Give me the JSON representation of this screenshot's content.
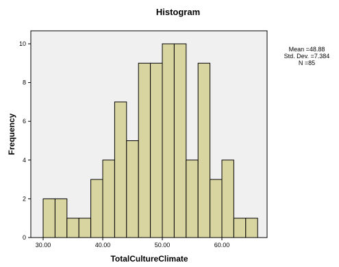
{
  "chart_data": {
    "type": "bar",
    "subtype": "histogram",
    "title": "Histogram",
    "xlabel": "TotalCultureClimate",
    "ylabel": "Frequency",
    "xlim": [
      28,
      67
    ],
    "ylim": [
      0,
      11
    ],
    "x_ticks": [
      30,
      40,
      50,
      60
    ],
    "x_tick_labels": [
      "30.00",
      "40.00",
      "50.00",
      "60.00"
    ],
    "y_ticks": [
      0,
      2,
      4,
      6,
      8,
      10
    ],
    "y_tick_labels": [
      "0",
      "2",
      "4",
      "6",
      "8",
      "10"
    ],
    "bin_width": 2,
    "bins": [
      {
        "start": 30,
        "end": 32,
        "count": 2
      },
      {
        "start": 32,
        "end": 34,
        "count": 2
      },
      {
        "start": 34,
        "end": 36,
        "count": 1
      },
      {
        "start": 36,
        "end": 38,
        "count": 1
      },
      {
        "start": 38,
        "end": 40,
        "count": 3
      },
      {
        "start": 40,
        "end": 42,
        "count": 4
      },
      {
        "start": 42,
        "end": 44,
        "count": 7
      },
      {
        "start": 44,
        "end": 46,
        "count": 5
      },
      {
        "start": 46,
        "end": 48,
        "count": 9
      },
      {
        "start": 48,
        "end": 50,
        "count": 9
      },
      {
        "start": 50,
        "end": 52,
        "count": 10
      },
      {
        "start": 52,
        "end": 54,
        "count": 10
      },
      {
        "start": 54,
        "end": 56,
        "count": 4
      },
      {
        "start": 56,
        "end": 58,
        "count": 9
      },
      {
        "start": 58,
        "end": 60,
        "count": 3
      },
      {
        "start": 60,
        "end": 62,
        "count": 4
      },
      {
        "start": 62,
        "end": 64,
        "count": 1
      },
      {
        "start": 64,
        "end": 66,
        "count": 1
      }
    ],
    "stats": [
      "Mean =48.88",
      "Std. Dev. =7.384",
      "N =85"
    ],
    "bar_color": "#d9d5a1",
    "bar_edge_color": "#000000",
    "plot_background": "#f0f0f0",
    "grid": false
  }
}
